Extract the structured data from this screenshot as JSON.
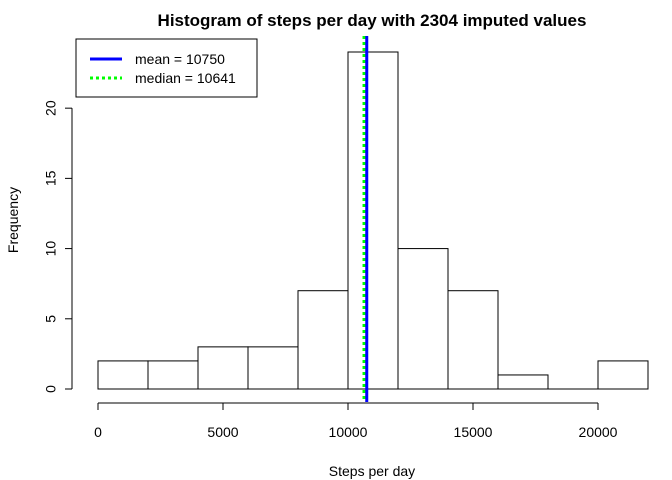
{
  "chart_data": {
    "type": "bar",
    "title": "Histogram of steps per day with 2304 imputed values",
    "xlabel": "Steps per day",
    "ylabel": "Frequency",
    "bins": [
      {
        "from": 0,
        "to": 2000,
        "count": 2
      },
      {
        "from": 2000,
        "to": 4000,
        "count": 2
      },
      {
        "from": 4000,
        "to": 6000,
        "count": 3
      },
      {
        "from": 6000,
        "to": 8000,
        "count": 3
      },
      {
        "from": 8000,
        "to": 10000,
        "count": 7
      },
      {
        "from": 10000,
        "to": 12000,
        "count": 24
      },
      {
        "from": 12000,
        "to": 14000,
        "count": 10
      },
      {
        "from": 14000,
        "to": 16000,
        "count": 7
      },
      {
        "from": 16000,
        "to": 18000,
        "count": 1
      },
      {
        "from": 18000,
        "to": 20000,
        "count": 0
      },
      {
        "from": 20000,
        "to": 22000,
        "count": 2
      }
    ],
    "xlim": [
      0,
      22000
    ],
    "ylim": [
      0,
      24
    ],
    "x_ticks": [
      0,
      5000,
      10000,
      15000,
      20000
    ],
    "y_ticks": [
      0,
      5,
      10,
      15,
      20
    ],
    "bar_fill": "#ffffff",
    "bar_stroke": "#000000",
    "grid": false,
    "legend_position": "top-left",
    "reference_lines": [
      {
        "name": "mean",
        "label": "mean = 10750",
        "value": 10750,
        "color": "#0000ff",
        "style": "solid"
      },
      {
        "name": "median",
        "label": "median = 10641",
        "value": 10641,
        "color": "#00ff00",
        "style": "dotted"
      }
    ]
  }
}
